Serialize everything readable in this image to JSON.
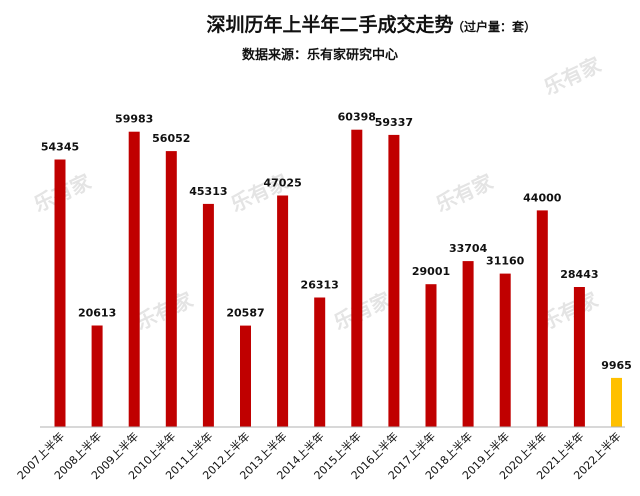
{
  "header": {
    "title": "深圳历年上半年二手成交走势",
    "unit": "（过户量：套）",
    "source": "数据来源：乐有家研究中心"
  },
  "watermark_text": "乐有家",
  "colors": {
    "bar": "#c00000",
    "highlight": "#ffc000",
    "axis": "#b0b0b0"
  },
  "chart_data": {
    "type": "bar",
    "categories": [
      "2007上半年",
      "2008上半年",
      "2009上半年",
      "2010上半年",
      "2011上半年",
      "2012上半年",
      "2013上半年",
      "2014上半年",
      "2015上半年",
      "2016上半年",
      "2017上半年",
      "2018上半年",
      "2019上半年",
      "2020上半年",
      "2021上半年",
      "2022上半年"
    ],
    "values": [
      54345,
      20613,
      59983,
      56052,
      45313,
      20587,
      47025,
      26313,
      60398,
      59337,
      29001,
      33704,
      31160,
      44000,
      28443,
      9965
    ],
    "highlight_index": 15,
    "ylim": [
      0,
      65000
    ],
    "grid": false,
    "legend": "none"
  }
}
